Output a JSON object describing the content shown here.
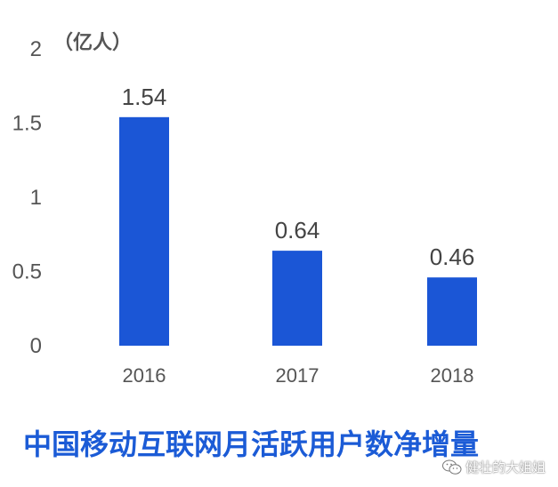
{
  "chart_data": {
    "type": "bar",
    "title": "中国移动互联网月活跃用户数净增量",
    "ylabel": "（亿人）",
    "categories": [
      "2016",
      "2017",
      "2018"
    ],
    "values": [
      1.54,
      0.64,
      0.46
    ],
    "value_labels": [
      "1.54",
      "0.64",
      "0.46"
    ],
    "ylim": [
      0,
      2
    ],
    "yticks": [
      0,
      0.5,
      1,
      1.5,
      2
    ],
    "ytick_labels": [
      "0",
      "0.5",
      "1",
      "1.5",
      "2"
    ],
    "grid": false,
    "legend": "none",
    "bar_color": "#1b56d6"
  },
  "watermark": {
    "icon": "wechat-icon",
    "text": "健壮的大姐姐"
  }
}
